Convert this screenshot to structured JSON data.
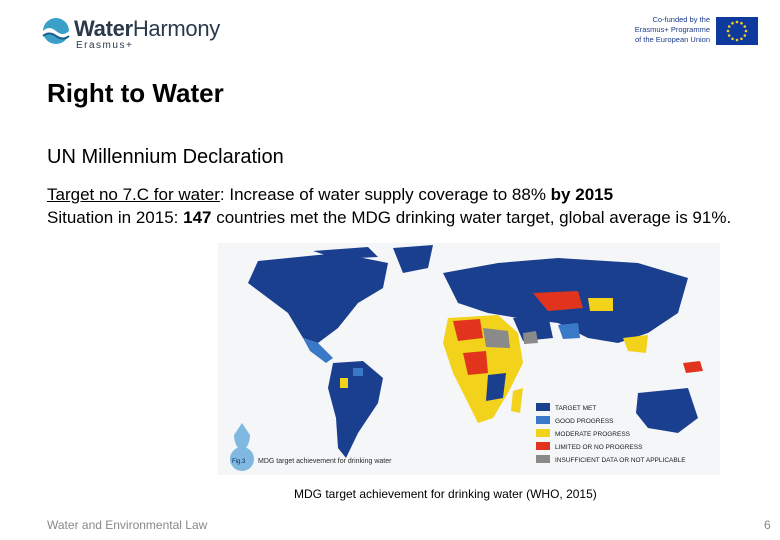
{
  "header": {
    "logo_name_a": "Water",
    "logo_name_b": "Harmony",
    "logo_sub": "Erasmus+",
    "eu_line1": "Co-funded by the",
    "eu_line2": "Erasmus+ Programme",
    "eu_line3": "of the European Union"
  },
  "slide": {
    "title": "Right to Water",
    "subtitle": "UN Millennium Declaration",
    "p1_link": "Target no 7.C for water",
    "p1_rest": ": Increase of water supply coverage to 88% ",
    "p1_bold": "by 2015",
    "p2_a": "Situation in 2015: ",
    "p2_bold": "147",
    "p2_b": " countries met the MDG drinking water target, global average is 91%."
  },
  "map": {
    "fig_label": "Fig.3",
    "fig_title": "MDG target achievement for drinking water",
    "legend": [
      {
        "label": "TARGET MET",
        "color": "#1b3f8f"
      },
      {
        "label": "GOOD PROGRESS",
        "color": "#3a78c8"
      },
      {
        "label": "MODERATE PROGRESS",
        "color": "#f2d21b"
      },
      {
        "label": "LIMITED OR NO PROGRESS",
        "color": "#e2341d"
      },
      {
        "label": "INSUFFICIENT DATA OR NOT APPLICABLE",
        "color": "#8a8a8a"
      }
    ]
  },
  "caption": "MDG target achievement for drinking water (WHO, 2015)",
  "footer": {
    "course": "Water and Environmental Law",
    "page": "6"
  }
}
